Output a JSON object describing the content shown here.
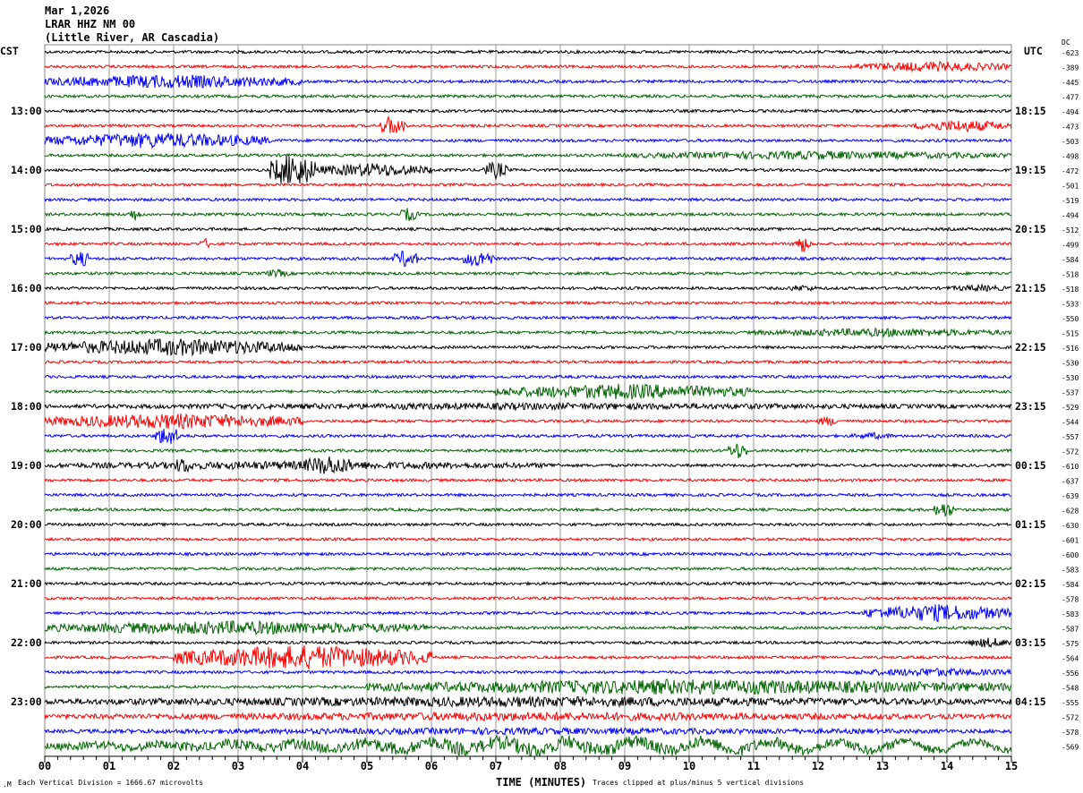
{
  "header": {
    "date": "Mar 1,2026",
    "station": "LRAR HHZ NM 00",
    "location": "(Little River, AR Cascadia)"
  },
  "left_tz": "CST",
  "right_tz": "UTC",
  "dc_header": "DC",
  "footer": {
    "scale": "Each Vertical Division = 1666.67 microvolts",
    "xlabel": "TIME (MINUTES)",
    "clip": "Traces clipped at plus/minus 5 vertical divisions"
  },
  "chart_data": {
    "type": "line",
    "subtype": "helicorder",
    "xlabel": "TIME (MINUTES)",
    "xlim": [
      0,
      15
    ],
    "x_ticks": [
      "00",
      "01",
      "02",
      "03",
      "04",
      "05",
      "06",
      "07",
      "08",
      "09",
      "10",
      "11",
      "12",
      "13",
      "14",
      "15"
    ],
    "rows_per_hour": 4,
    "row_count": 48,
    "trace_colors": [
      "#000000",
      "#ff0000",
      "#0000ff",
      "#006400"
    ],
    "grid": true,
    "left_labels": [
      {
        "row": 4,
        "text": "13:00"
      },
      {
        "row": 8,
        "text": "14:00"
      },
      {
        "row": 12,
        "text": "15:00"
      },
      {
        "row": 16,
        "text": "16:00"
      },
      {
        "row": 20,
        "text": "17:00"
      },
      {
        "row": 24,
        "text": "18:00"
      },
      {
        "row": 28,
        "text": "19:00"
      },
      {
        "row": 32,
        "text": "20:00"
      },
      {
        "row": 36,
        "text": "21:00"
      },
      {
        "row": 40,
        "text": "22:00"
      },
      {
        "row": 44,
        "text": "23:00"
      }
    ],
    "right_labels": [
      {
        "row": 4,
        "text": "18:15"
      },
      {
        "row": 8,
        "text": "19:15"
      },
      {
        "row": 12,
        "text": "20:15"
      },
      {
        "row": 16,
        "text": "21:15"
      },
      {
        "row": 20,
        "text": "22:15"
      },
      {
        "row": 24,
        "text": "23:15"
      },
      {
        "row": 28,
        "text": "00:15"
      },
      {
        "row": 32,
        "text": "01:15"
      },
      {
        "row": 36,
        "text": "02:15"
      },
      {
        "row": 40,
        "text": "03:15"
      },
      {
        "row": 44,
        "text": "04:15"
      }
    ],
    "dc_offsets": [
      -623,
      -389,
      -445,
      -477,
      -494,
      -473,
      -503,
      -498,
      -472,
      -501,
      -519,
      -494,
      -512,
      -499,
      -584,
      -518,
      -518,
      -533,
      -550,
      -515,
      -516,
      -530,
      -530,
      -537,
      -529,
      -544,
      -557,
      -572,
      -610,
      -637,
      -639,
      -628,
      -630,
      -601,
      -600,
      -583,
      -584,
      -578,
      -583,
      -587,
      -575,
      -564,
      -556,
      -548,
      -555,
      -572,
      -578,
      -569
    ]
  }
}
